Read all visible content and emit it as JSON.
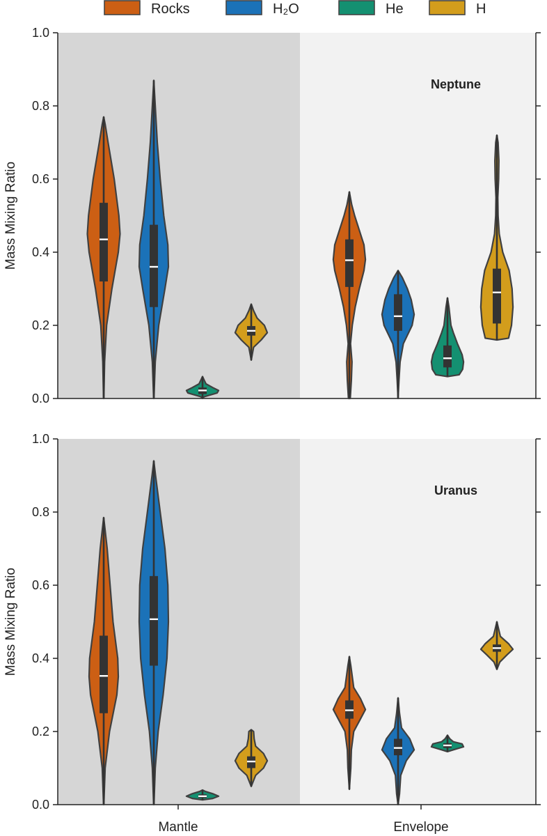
{
  "chart_data": {
    "type": "violin",
    "legend": {
      "placement": "top",
      "entries": [
        {
          "name": "Rocks",
          "color": "#cc5f14"
        },
        {
          "name": "H₂O",
          "color": "#1b72b8"
        },
        {
          "name": "He",
          "color": "#149071"
        },
        {
          "name": "H",
          "color": "#d39d1c"
        }
      ]
    },
    "categories": [
      "Mantle",
      "Envelope"
    ],
    "shading": {
      "Mantle": "#d6d6d6",
      "Envelope": "#f2f2f2"
    },
    "ylabel": "Mass Mixing Ratio",
    "ylim": [
      0,
      1
    ],
    "yticks": [
      "0.0",
      "0.2",
      "0.4",
      "0.6",
      "0.8",
      "1.0"
    ],
    "panels": [
      {
        "title": "Neptune",
        "series": [
          {
            "name": "Rocks",
            "category": "Mantle",
            "min": 0.0,
            "q1": 0.32,
            "median": 0.435,
            "q3": 0.535,
            "max": 0.77,
            "profile": [
              [
                0.0,
                0.005
              ],
              [
                0.1,
                0.03
              ],
              [
                0.2,
                0.1
              ],
              [
                0.3,
                0.28
              ],
              [
                0.4,
                0.5
              ],
              [
                0.45,
                0.56
              ],
              [
                0.5,
                0.52
              ],
              [
                0.6,
                0.36
              ],
              [
                0.7,
                0.15
              ],
              [
                0.75,
                0.05
              ],
              [
                0.77,
                0.0
              ]
            ]
          },
          {
            "name": "H₂O",
            "category": "Mantle",
            "min": 0.0,
            "q1": 0.25,
            "median": 0.36,
            "q3": 0.475,
            "max": 0.87,
            "profile": [
              [
                0.0,
                0.005
              ],
              [
                0.1,
                0.05
              ],
              [
                0.2,
                0.17
              ],
              [
                0.3,
                0.38
              ],
              [
                0.36,
                0.5
              ],
              [
                0.42,
                0.48
              ],
              [
                0.5,
                0.34
              ],
              [
                0.6,
                0.22
              ],
              [
                0.7,
                0.12
              ],
              [
                0.8,
                0.05
              ],
              [
                0.87,
                0.0
              ]
            ]
          },
          {
            "name": "He",
            "category": "Mantle",
            "min": 0.0,
            "q1": 0.012,
            "median": 0.022,
            "q3": 0.03,
            "max": 0.06,
            "profile": [
              [
                0.0,
                0.0
              ],
              [
                0.005,
                0.06
              ],
              [
                0.015,
                0.5
              ],
              [
                0.022,
                0.55
              ],
              [
                0.03,
                0.35
              ],
              [
                0.04,
                0.12
              ],
              [
                0.05,
                0.06
              ],
              [
                0.06,
                0.0
              ]
            ]
          },
          {
            "name": "H",
            "category": "Mantle",
            "min": 0.105,
            "q1": 0.172,
            "median": 0.185,
            "q3": 0.198,
            "max": 0.258,
            "profile": [
              [
                0.105,
                0.0
              ],
              [
                0.14,
                0.08
              ],
              [
                0.16,
                0.34
              ],
              [
                0.18,
                0.55
              ],
              [
                0.2,
                0.45
              ],
              [
                0.22,
                0.2
              ],
              [
                0.24,
                0.08
              ],
              [
                0.258,
                0.0
              ]
            ]
          },
          {
            "name": "Rocks",
            "category": "Envelope",
            "min": 0.0,
            "q1": 0.305,
            "median": 0.378,
            "q3": 0.435,
            "max": 0.565,
            "profile": [
              [
                0.0,
                0.03
              ],
              [
                0.05,
                0.07
              ],
              [
                0.1,
                0.09
              ],
              [
                0.15,
                0.04
              ],
              [
                0.2,
                0.1
              ],
              [
                0.25,
                0.2
              ],
              [
                0.3,
                0.34
              ],
              [
                0.35,
                0.5
              ],
              [
                0.38,
                0.55
              ],
              [
                0.42,
                0.5
              ],
              [
                0.45,
                0.38
              ],
              [
                0.5,
                0.18
              ],
              [
                0.53,
                0.08
              ],
              [
                0.565,
                0.0
              ]
            ]
          },
          {
            "name": "H₂O",
            "category": "Envelope",
            "min": 0.0,
            "q1": 0.185,
            "median": 0.225,
            "q3": 0.285,
            "max": 0.35,
            "profile": [
              [
                0.0,
                0.0
              ],
              [
                0.05,
                0.03
              ],
              [
                0.1,
                0.07
              ],
              [
                0.15,
                0.18
              ],
              [
                0.2,
                0.48
              ],
              [
                0.23,
                0.55
              ],
              [
                0.27,
                0.45
              ],
              [
                0.3,
                0.32
              ],
              [
                0.33,
                0.15
              ],
              [
                0.35,
                0.0
              ]
            ]
          },
          {
            "name": "He",
            "category": "Envelope",
            "min": 0.06,
            "q1": 0.085,
            "median": 0.11,
            "q3": 0.145,
            "max": 0.275,
            "profile": [
              [
                0.06,
                0.0
              ],
              [
                0.065,
                0.4
              ],
              [
                0.08,
                0.52
              ],
              [
                0.1,
                0.55
              ],
              [
                0.12,
                0.5
              ],
              [
                0.15,
                0.34
              ],
              [
                0.18,
                0.2
              ],
              [
                0.2,
                0.12
              ],
              [
                0.25,
                0.05
              ],
              [
                0.275,
                0.0
              ]
            ]
          },
          {
            "name": "H",
            "category": "Envelope",
            "min": 0.16,
            "q1": 0.205,
            "median": 0.29,
            "q3": 0.355,
            "max": 0.72,
            "profile": [
              [
                0.16,
                0.0
              ],
              [
                0.165,
                0.4
              ],
              [
                0.2,
                0.5
              ],
              [
                0.25,
                0.55
              ],
              [
                0.3,
                0.52
              ],
              [
                0.35,
                0.42
              ],
              [
                0.4,
                0.2
              ],
              [
                0.45,
                0.08
              ],
              [
                0.5,
                0.04
              ],
              [
                0.55,
                0.03
              ],
              [
                0.6,
                0.06
              ],
              [
                0.65,
                0.07
              ],
              [
                0.7,
                0.04
              ],
              [
                0.72,
                0.0
              ]
            ]
          }
        ]
      },
      {
        "title": "Uranus",
        "series": [
          {
            "name": "Rocks",
            "category": "Mantle",
            "min": 0.0,
            "q1": 0.25,
            "median": 0.352,
            "q3": 0.462,
            "max": 0.785,
            "profile": [
              [
                0.0,
                0.005
              ],
              [
                0.1,
                0.05
              ],
              [
                0.2,
                0.2
              ],
              [
                0.3,
                0.45
              ],
              [
                0.35,
                0.5
              ],
              [
                0.4,
                0.48
              ],
              [
                0.5,
                0.32
              ],
              [
                0.6,
                0.22
              ],
              [
                0.65,
                0.17
              ],
              [
                0.7,
                0.12
              ],
              [
                0.75,
                0.05
              ],
              [
                0.785,
                0.0
              ]
            ]
          },
          {
            "name": "H₂O",
            "category": "Mantle",
            "min": 0.0,
            "q1": 0.38,
            "median": 0.507,
            "q3": 0.625,
            "max": 0.94,
            "profile": [
              [
                0.0,
                0.005
              ],
              [
                0.1,
                0.05
              ],
              [
                0.2,
                0.15
              ],
              [
                0.3,
                0.32
              ],
              [
                0.4,
                0.45
              ],
              [
                0.5,
                0.5
              ],
              [
                0.6,
                0.48
              ],
              [
                0.7,
                0.38
              ],
              [
                0.8,
                0.22
              ],
              [
                0.9,
                0.06
              ],
              [
                0.94,
                0.0
              ]
            ]
          },
          {
            "name": "He",
            "category": "Mantle",
            "min": 0.013,
            "q1": 0.018,
            "median": 0.023,
            "q3": 0.028,
            "max": 0.04,
            "profile": [
              [
                0.013,
                0.0
              ],
              [
                0.017,
                0.35
              ],
              [
                0.023,
                0.55
              ],
              [
                0.03,
                0.35
              ],
              [
                0.036,
                0.1
              ],
              [
                0.04,
                0.0
              ]
            ]
          },
          {
            "name": "H",
            "category": "Mantle",
            "min": 0.05,
            "q1": 0.1,
            "median": 0.118,
            "q3": 0.132,
            "max": 0.205,
            "profile": [
              [
                0.05,
                0.0
              ],
              [
                0.08,
                0.15
              ],
              [
                0.1,
                0.42
              ],
              [
                0.12,
                0.55
              ],
              [
                0.14,
                0.42
              ],
              [
                0.16,
                0.15
              ],
              [
                0.18,
                0.1
              ],
              [
                0.2,
                0.08
              ],
              [
                0.205,
                0.0
              ]
            ]
          },
          {
            "name": "Rocks",
            "category": "Envelope",
            "min": 0.042,
            "q1": 0.235,
            "median": 0.258,
            "q3": 0.285,
            "max": 0.405,
            "profile": [
              [
                0.042,
                0.0
              ],
              [
                0.1,
                0.05
              ],
              [
                0.15,
                0.07
              ],
              [
                0.2,
                0.15
              ],
              [
                0.23,
                0.35
              ],
              [
                0.26,
                0.55
              ],
              [
                0.29,
                0.38
              ],
              [
                0.32,
                0.15
              ],
              [
                0.35,
                0.1
              ],
              [
                0.38,
                0.05
              ],
              [
                0.405,
                0.0
              ]
            ]
          },
          {
            "name": "H₂O",
            "category": "Envelope",
            "min": 0.0,
            "q1": 0.135,
            "median": 0.155,
            "q3": 0.18,
            "max": 0.292,
            "profile": [
              [
                0.0,
                0.0
              ],
              [
                0.03,
                0.05
              ],
              [
                0.08,
                0.09
              ],
              [
                0.12,
                0.28
              ],
              [
                0.15,
                0.55
              ],
              [
                0.18,
                0.4
              ],
              [
                0.21,
                0.12
              ],
              [
                0.25,
                0.05
              ],
              [
                0.292,
                0.0
              ]
            ]
          },
          {
            "name": "He",
            "category": "Envelope",
            "min": 0.145,
            "q1": 0.155,
            "median": 0.162,
            "q3": 0.168,
            "max": 0.19,
            "profile": [
              [
                0.145,
                0.0
              ],
              [
                0.15,
                0.2
              ],
              [
                0.158,
                0.55
              ],
              [
                0.166,
                0.5
              ],
              [
                0.172,
                0.2
              ],
              [
                0.18,
                0.08
              ],
              [
                0.19,
                0.0
              ]
            ]
          },
          {
            "name": "H",
            "category": "Envelope",
            "min": 0.37,
            "q1": 0.418,
            "median": 0.428,
            "q3": 0.438,
            "max": 0.5,
            "profile": [
              [
                0.37,
                0.0
              ],
              [
                0.39,
                0.1
              ],
              [
                0.41,
                0.35
              ],
              [
                0.425,
                0.55
              ],
              [
                0.44,
                0.4
              ],
              [
                0.46,
                0.12
              ],
              [
                0.48,
                0.06
              ],
              [
                0.5,
                0.0
              ]
            ]
          }
        ]
      }
    ]
  }
}
